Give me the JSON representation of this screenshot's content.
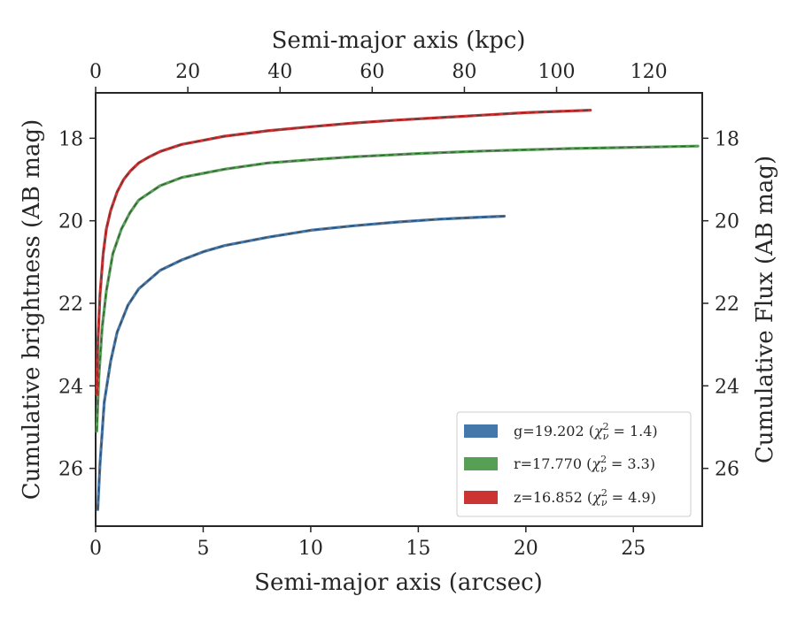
{
  "chart_data": {
    "type": "line",
    "xlabel": "Semi-major axis (arcsec)",
    "ylabel": "Cumulative brightness (AB mag)",
    "top_xlabel": "Semi-major axis (kpc)",
    "right_ylabel": "Cumulative Flux (AB mag)",
    "xlim": [
      0,
      28.2
    ],
    "ylim": [
      27.4,
      16.9
    ],
    "top_xlim": [
      0,
      131.6
    ],
    "y_inverted": true,
    "x_ticks": [
      "0",
      "5",
      "10",
      "15",
      "20",
      "25"
    ],
    "x_tick_values": [
      0,
      5,
      10,
      15,
      20,
      25
    ],
    "top_x_ticks": [
      "0",
      "20",
      "40",
      "60",
      "80",
      "100",
      "120"
    ],
    "top_x_tick_values": [
      0,
      20,
      40,
      60,
      80,
      100,
      120
    ],
    "y_ticks": [
      "18",
      "20",
      "22",
      "24",
      "26"
    ],
    "y_tick_values": [
      18,
      20,
      22,
      24,
      26
    ],
    "legend_position": "lower-right",
    "fit_style": "dashed",
    "series": [
      {
        "name": "g",
        "legend_label": "g=19.202 (χ²ᵥ = 1.4)",
        "legend_main": "g=19.202 (",
        "legend_chi": "χ",
        "legend_sup": "2",
        "legend_sub": "ν",
        "legend_tail": " = 1.4)",
        "color": "#4477aa",
        "x": [
          0.1,
          0.2,
          0.4,
          0.7,
          1.0,
          1.5,
          2.0,
          3.0,
          4.0,
          5.0,
          6.0,
          8.0,
          10.0,
          12.0,
          14.0,
          16.0,
          18.0,
          19.0
        ],
        "y": [
          27.0,
          25.9,
          24.4,
          23.4,
          22.7,
          22.05,
          21.65,
          21.2,
          20.95,
          20.75,
          20.6,
          20.4,
          20.23,
          20.12,
          20.03,
          19.96,
          19.91,
          19.89
        ]
      },
      {
        "name": "r",
        "legend_label": "r=17.770 (χ²ᵥ = 3.3)",
        "legend_main": "r=17.770 (",
        "legend_chi": "χ",
        "legend_sup": "2",
        "legend_sub": "ν",
        "legend_tail": " = 3.3)",
        "color": "#55a055",
        "x": [
          0.05,
          0.15,
          0.3,
          0.5,
          0.8,
          1.2,
          1.6,
          2.0,
          3.0,
          4.0,
          5.0,
          6.0,
          8.0,
          10.0,
          12.0,
          15.0,
          18.0,
          20.0,
          22.0,
          25.0,
          28.0
        ],
        "y": [
          25.1,
          23.8,
          22.6,
          21.7,
          20.8,
          20.2,
          19.8,
          19.5,
          19.15,
          18.95,
          18.85,
          18.75,
          18.6,
          18.52,
          18.45,
          18.37,
          18.31,
          18.28,
          18.25,
          18.22,
          18.19
        ]
      },
      {
        "name": "z",
        "legend_label": "z=16.852 (χ²ᵥ = 4.9)",
        "legend_main": "z=16.852 (",
        "legend_chi": "χ",
        "legend_sup": "2",
        "legend_sub": "ν",
        "legend_tail": " = 4.9)",
        "color": "#cc3333",
        "x": [
          0.05,
          0.1,
          0.2,
          0.35,
          0.5,
          0.7,
          1.0,
          1.3,
          1.6,
          2.0,
          2.5,
          3.0,
          4.0,
          5.0,
          6.0,
          8.0,
          10.0,
          12.0,
          14.0,
          16.0,
          18.0,
          20.0,
          23.0
        ],
        "y": [
          24.2,
          23.0,
          21.8,
          20.8,
          20.2,
          19.75,
          19.3,
          19.0,
          18.8,
          18.6,
          18.45,
          18.32,
          18.15,
          18.05,
          17.95,
          17.82,
          17.72,
          17.63,
          17.56,
          17.5,
          17.44,
          17.38,
          17.32
        ]
      }
    ]
  }
}
